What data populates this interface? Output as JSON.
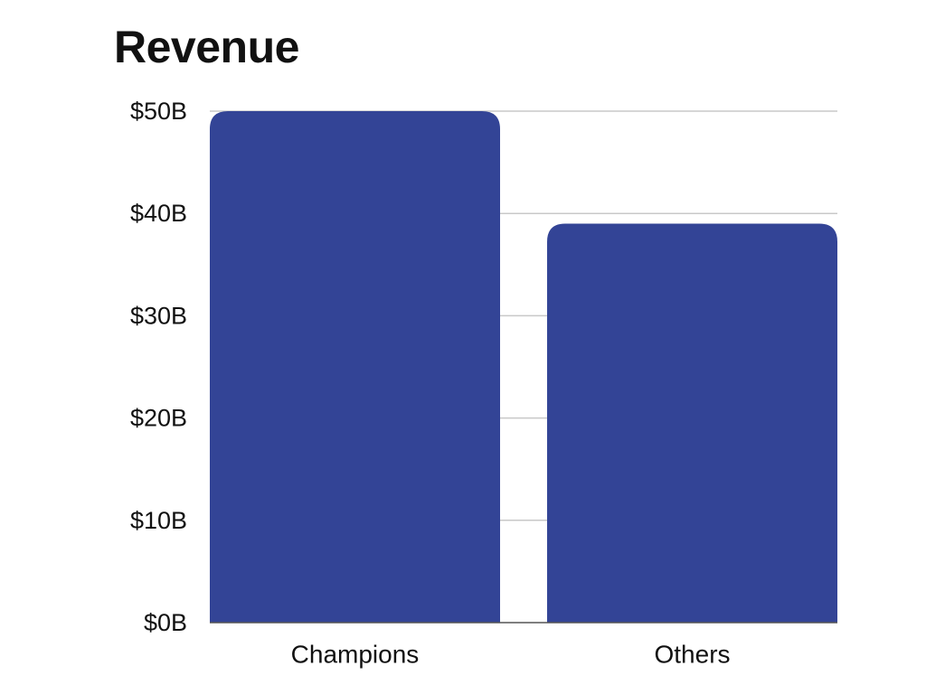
{
  "chart_data": {
    "type": "bar",
    "title": "Revenue",
    "xlabel": "",
    "ylabel": "",
    "categories": [
      "Champions",
      "Others"
    ],
    "values": [
      50,
      39
    ],
    "unit": "B",
    "ylim": [
      0,
      50
    ],
    "y_ticks": [
      0,
      10,
      20,
      30,
      40,
      50
    ],
    "y_tick_labels": [
      "$0B",
      "$10B",
      "$20B",
      "$30B",
      "$40B",
      "$50B"
    ],
    "grid": true,
    "legend": "none",
    "bar_color": "#334496"
  }
}
